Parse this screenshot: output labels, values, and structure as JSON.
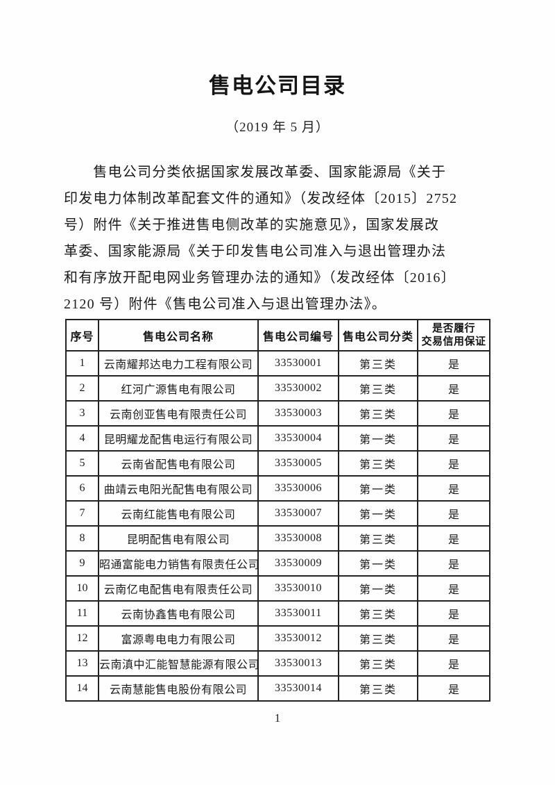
{
  "page": {
    "title": "售电公司目录",
    "subtitle": "（2019 年 5 月）",
    "page_number": "1"
  },
  "intro": {
    "text": "　　售电公司分类依据国家发展改革委、国家能源局《关于\n印发电力体制改革配套文件的通知》（发改经体〔2015〕2752\n号）附件《关于推进售电侧改革的实施意见》，国家发展改\n革委、国家能源局《关于印发售电公司准入与退出管理办法\n和有序放开配电网业务管理办法的通知》（发改经体〔2016〕\n2120 号）附件《售电公司准入与退出管理办法》。"
  },
  "table": {
    "headers": [
      "序号",
      "售电公司名称",
      "售电公司编号",
      "售电公司分类",
      "是否履行\n交易信用保证"
    ],
    "rows": [
      {
        "no": "1",
        "name": "云南耀邦达电力工程有限公司",
        "code": "33530001",
        "category": "第三类",
        "guarantee": "是"
      },
      {
        "no": "2",
        "name": "红河广源售电有限公司",
        "code": "33530002",
        "category": "第三类",
        "guarantee": "是"
      },
      {
        "no": "3",
        "name": "云南创亚售电有限责任公司",
        "code": "33530003",
        "category": "第三类",
        "guarantee": "是"
      },
      {
        "no": "4",
        "name": "昆明耀龙配售电运行有限公司",
        "code": "33530004",
        "category": "第一类",
        "guarantee": "是"
      },
      {
        "no": "5",
        "name": "云南省配售电有限公司",
        "code": "33530005",
        "category": "第三类",
        "guarantee": "是"
      },
      {
        "no": "6",
        "name": "曲靖云电阳光配售电有限公司",
        "code": "33530006",
        "category": "第一类",
        "guarantee": "是"
      },
      {
        "no": "7",
        "name": "云南红能售电有限公司",
        "code": "33530007",
        "category": "第一类",
        "guarantee": "是"
      },
      {
        "no": "8",
        "name": "昆明配售电有限公司",
        "code": "33530008",
        "category": "第三类",
        "guarantee": "是"
      },
      {
        "no": "9",
        "name": "昭通富能电力销售有限责任公司",
        "code": "33530009",
        "category": "第一类",
        "guarantee": "是"
      },
      {
        "no": "10",
        "name": "云南亿电配售电有限责任公司",
        "code": "33530010",
        "category": "第一类",
        "guarantee": "是"
      },
      {
        "no": "11",
        "name": "云南协鑫售电有限公司",
        "code": "33530011",
        "category": "第三类",
        "guarantee": "是"
      },
      {
        "no": "12",
        "name": "富源粤电电力有限公司",
        "code": "33530012",
        "category": "第三类",
        "guarantee": "是"
      },
      {
        "no": "13",
        "name": "云南滇中汇能智慧能源有限公司",
        "code": "33530013",
        "category": "第三类",
        "guarantee": "是"
      },
      {
        "no": "14",
        "name": "云南慧能售电股份有限公司",
        "code": "33530014",
        "category": "第三类",
        "guarantee": "是"
      }
    ]
  }
}
